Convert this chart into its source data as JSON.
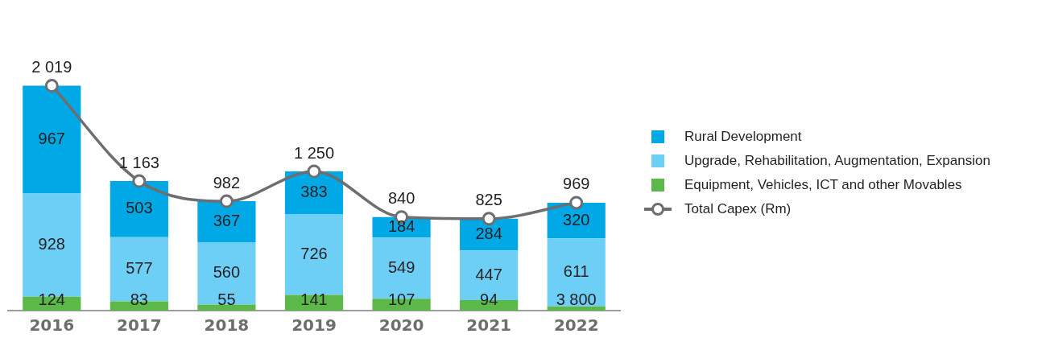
{
  "chart_data": {
    "type": "bar",
    "stacked": true,
    "annotations": [
      {
        "text": "3 800",
        "x": "2022",
        "y": 19
      }
    ],
    "legend": "right",
    "grid": false,
    "marker": "circle",
    "categories": [
      "2016",
      "2017",
      "2018",
      "2019",
      "2020",
      "2021",
      "2022"
    ],
    "series": [
      {
        "name": "Equipment, Vehicles, ICT and other Movables",
        "color": "#5cb848",
        "values": [
          124,
          83,
          55,
          141,
          107,
          94,
          38
        ],
        "value_labels": [
          "124",
          "83",
          "55",
          "141",
          "107",
          "94",
          null
        ]
      },
      {
        "name": "Upgrade, Rehabilitation, Augmentation, Expansion",
        "color": "#6dcff6",
        "values": [
          928,
          577,
          560,
          726,
          549,
          447,
          611
        ],
        "value_labels": [
          "928",
          "577",
          "560",
          "726",
          "549",
          "447",
          "611"
        ]
      },
      {
        "name": "Rural Development",
        "color": "#00a8e6",
        "values": [
          967,
          503,
          367,
          383,
          184,
          284,
          320
        ],
        "value_labels": [
          "967",
          "503",
          "367",
          "383",
          "184",
          "284",
          "320"
        ]
      },
      {
        "name": "Total Capex (Rm)",
        "type": "line",
        "color": "#6d6e71",
        "values": [
          2019,
          1163,
          982,
          1250,
          840,
          825,
          969
        ],
        "value_labels": [
          "2 019",
          "1 163",
          "982",
          "1 250",
          "840",
          "825",
          "969"
        ]
      }
    ]
  }
}
